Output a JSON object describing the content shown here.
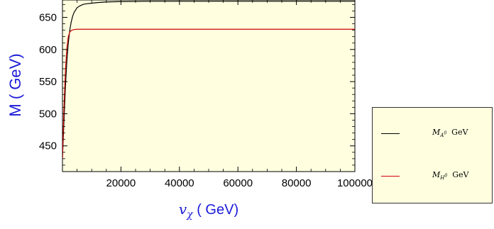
{
  "chart_data": {
    "type": "line",
    "title": "",
    "ylabel": "M ( GeV)",
    "xlabel_symbol": "v",
    "xlabel_subscript": "χ",
    "xlabel_unit": "( GeV)",
    "xlim": [
      0,
      100000
    ],
    "ylim": [
      410,
      677
    ],
    "x_ticks": [
      20000,
      40000,
      60000,
      80000,
      100000
    ],
    "x_tick_labels": [
      "20000",
      "40000",
      "60000",
      "80000",
      "100000"
    ],
    "y_ticks": [
      450,
      500,
      550,
      600,
      650
    ],
    "y_tick_labels": [
      "450",
      "500",
      "550",
      "600",
      "650"
    ],
    "background_color": "#ffffe0",
    "grid": false,
    "legend_position": "right",
    "series": [
      {
        "name": "M_A0 GeV",
        "legend_symbol": "M",
        "legend_sub": "A",
        "legend_sup": "0",
        "legend_unit": "GeV",
        "color": "#000000",
        "x": [
          0,
          500,
          1000,
          1500,
          2000,
          2500,
          3000,
          3500,
          4000,
          5000,
          6000,
          7000,
          8000,
          10000,
          12000,
          15000,
          20000,
          30000,
          40000,
          60000,
          80000,
          100000
        ],
        "y": [
          430,
          487,
          541,
          582,
          610,
          630,
          643,
          652,
          658,
          665,
          668,
          670,
          671,
          672,
          673,
          674,
          674.5,
          675,
          675,
          675,
          675,
          675
        ]
      },
      {
        "name": "M_H0 GeV",
        "legend_symbol": "M",
        "legend_sub": "H",
        "legend_sup": "0",
        "legend_unit": "GeV",
        "color": "#cc0000",
        "x": [
          0,
          500,
          1000,
          1500,
          2000,
          2500,
          3000,
          3500,
          4000,
          5000,
          6000,
          8000,
          10000,
          20000,
          40000,
          60000,
          80000,
          100000
        ],
        "y": [
          430,
          508,
          566,
          602,
          620,
          627,
          629.5,
          630.5,
          631,
          631.5,
          631.5,
          631.5,
          631.5,
          631.5,
          631.5,
          631.5,
          631.5,
          631.5
        ]
      }
    ]
  }
}
